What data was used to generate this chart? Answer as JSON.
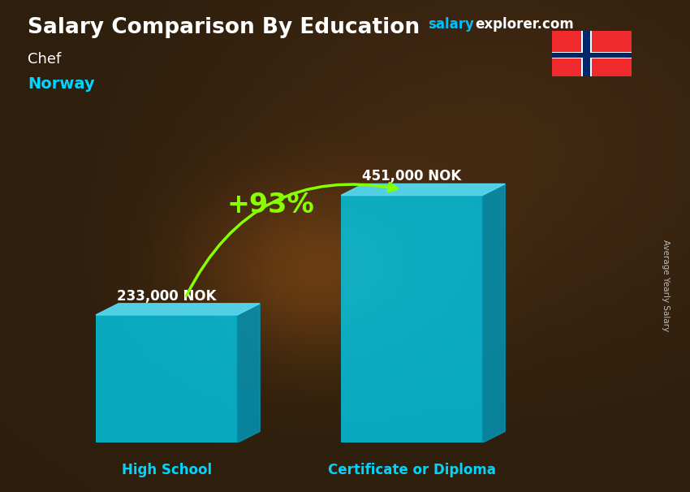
{
  "title": "Salary Comparison By Education",
  "subtitle_job": "Chef",
  "subtitle_country": "Norway",
  "categories": [
    "High School",
    "Certificate or Diploma"
  ],
  "values": [
    233000,
    451000
  ],
  "value_labels": [
    "233,000 NOK",
    "451,000 NOK"
  ],
  "pct_change": "+93%",
  "bar_face_color": "#00c8e8",
  "bar_right_color": "#0099bb",
  "bar_top_color": "#55ddf5",
  "bar_alpha": 0.82,
  "bg_color": "#2a1a0e",
  "title_color": "#ffffff",
  "subtitle_job_color": "#ffffff",
  "subtitle_country_color": "#00d4ff",
  "category_label_color": "#00d4ff",
  "value_label_color": "#ffffff",
  "pct_color": "#88ff00",
  "arrow_color": "#88ff00",
  "site_salary_color": "#00bfff",
  "site_explorer_color": "#ffffff",
  "ylabel_color": "#bbbbbb",
  "ylabel_text": "Average Yearly Salary",
  "ylim_max": 520000,
  "flag_red": "#EF2B2D",
  "flag_blue": "#002868",
  "flag_white": "#ffffff"
}
